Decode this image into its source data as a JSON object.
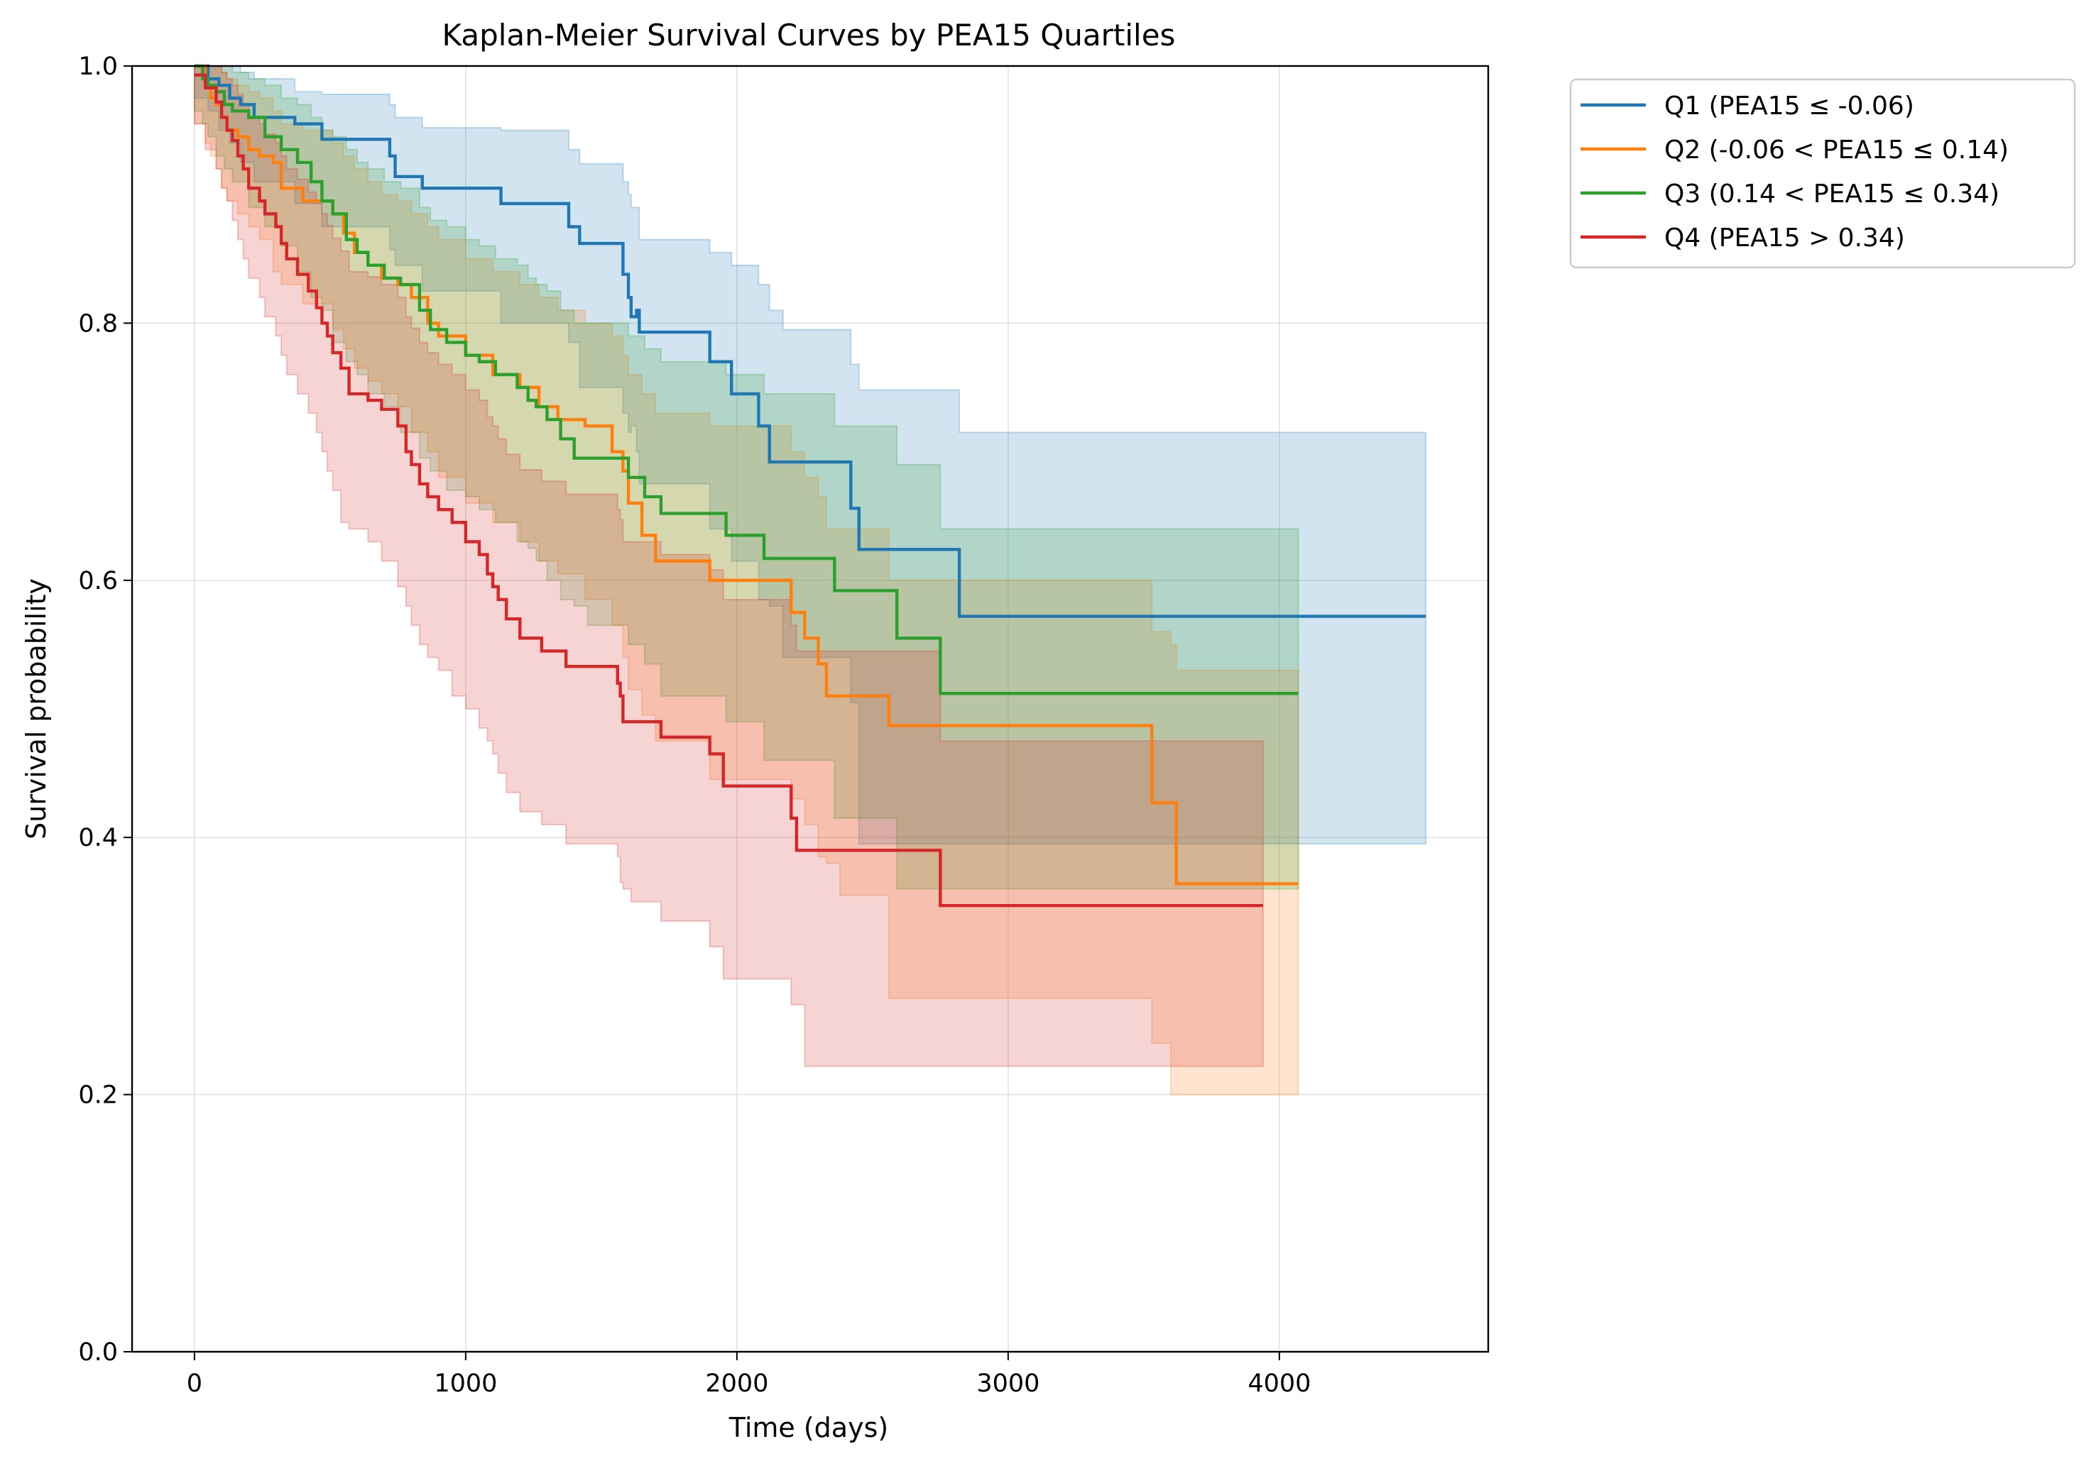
{
  "chart_data": {
    "type": "line",
    "title": "Kaplan-Meier Survival Curves by PEA15 Quartiles",
    "xlabel": "Time (days)",
    "ylabel": "Survival probability",
    "xlim": [
      -230,
      4770
    ],
    "ylim": [
      0.0,
      1.0
    ],
    "xticks": [
      0,
      1000,
      2000,
      3000,
      4000
    ],
    "xtick_labels": [
      "0",
      "1000",
      "2000",
      "3000",
      "4000"
    ],
    "yticks": [
      0.0,
      0.2,
      0.4,
      0.6,
      0.8,
      1.0
    ],
    "ytick_labels": [
      "0.0",
      "0.2",
      "0.4",
      "0.6",
      "0.8",
      "1.0"
    ],
    "grid": true,
    "legend_position": "outside upper-right",
    "series": [
      {
        "name": "Q1 (PEA15 ≤ -0.06)",
        "color": "#1f77b4",
        "x": [
          0,
          50,
          90,
          130,
          170,
          220,
          370,
          470,
          720,
          740,
          840,
          1130,
          1380,
          1420,
          1580,
          1600,
          1610,
          1630,
          1640,
          1900,
          1980,
          2080,
          2120,
          2170,
          2420,
          2450,
          2820,
          4540
        ],
        "y": [
          1.0,
          0.99,
          0.985,
          0.975,
          0.97,
          0.96,
          0.955,
          0.943,
          0.93,
          0.914,
          0.905,
          0.893,
          0.875,
          0.862,
          0.838,
          0.82,
          0.805,
          0.81,
          0.793,
          0.77,
          0.745,
          0.72,
          0.692,
          0.692,
          0.656,
          0.624,
          0.572,
          0.572
        ],
        "ci_upper": [
          1.0,
          1.0,
          1.0,
          1.0,
          0.995,
          0.99,
          0.98,
          0.978,
          0.97,
          0.96,
          0.952,
          0.95,
          0.935,
          0.924,
          0.91,
          0.9,
          0.89,
          0.89,
          0.865,
          0.855,
          0.845,
          0.83,
          0.81,
          0.795,
          0.768,
          0.748,
          0.715,
          0.715
        ],
        "ci_lower": [
          0.99,
          0.975,
          0.965,
          0.95,
          0.94,
          0.925,
          0.91,
          0.893,
          0.875,
          0.857,
          0.845,
          0.825,
          0.8,
          0.785,
          0.75,
          0.73,
          0.715,
          0.72,
          0.7,
          0.675,
          0.64,
          0.615,
          0.585,
          0.58,
          0.54,
          0.505,
          0.395,
          0.395
        ]
      },
      {
        "name": "Q2 (-0.06 < PEA15 ≤ 0.14)",
        "color": "#ff7f0e",
        "x": [
          0,
          40,
          60,
          80,
          100,
          120,
          160,
          200,
          240,
          290,
          320,
          400,
          510,
          550,
          590,
          640,
          690,
          750,
          800,
          860,
          900,
          1000,
          1100,
          1200,
          1270,
          1340,
          1440,
          1540,
          1580,
          1600,
          1650,
          1700,
          1900,
          2200,
          2250,
          2300,
          2330,
          2380,
          2560,
          3530,
          3600,
          3620,
          4070
        ],
        "y": [
          1.0,
          0.985,
          0.975,
          0.97,
          0.96,
          0.95,
          0.945,
          0.935,
          0.93,
          0.925,
          0.905,
          0.895,
          0.885,
          0.87,
          0.855,
          0.845,
          0.835,
          0.83,
          0.82,
          0.8,
          0.79,
          0.775,
          0.76,
          0.75,
          0.735,
          0.725,
          0.72,
          0.7,
          0.685,
          0.66,
          0.635,
          0.615,
          0.6,
          0.575,
          0.555,
          0.535,
          0.51,
          0.51,
          0.487,
          0.427,
          0.427,
          0.364,
          0.364
        ],
        "ci_upper": [
          1.0,
          1.0,
          1.0,
          1.0,
          0.995,
          0.99,
          0.985,
          0.98,
          0.975,
          0.965,
          0.955,
          0.95,
          0.94,
          0.93,
          0.92,
          0.91,
          0.9,
          0.895,
          0.885,
          0.875,
          0.865,
          0.85,
          0.84,
          0.83,
          0.82,
          0.81,
          0.8,
          0.79,
          0.775,
          0.76,
          0.745,
          0.73,
          0.72,
          0.7,
          0.68,
          0.665,
          0.64,
          0.64,
          0.6,
          0.56,
          0.55,
          0.53,
          0.53
        ],
        "ci_lower": [
          0.985,
          0.955,
          0.94,
          0.93,
          0.92,
          0.905,
          0.895,
          0.885,
          0.875,
          0.865,
          0.84,
          0.83,
          0.815,
          0.795,
          0.78,
          0.765,
          0.755,
          0.745,
          0.735,
          0.715,
          0.7,
          0.68,
          0.66,
          0.645,
          0.63,
          0.615,
          0.605,
          0.585,
          0.565,
          0.54,
          0.515,
          0.495,
          0.475,
          0.445,
          0.43,
          0.41,
          0.385,
          0.38,
          0.355,
          0.275,
          0.24,
          0.2,
          0.2
        ]
      },
      {
        "name": "Q3 (0.14 < PEA15 ≤ 0.34)",
        "color": "#2ca02c",
        "x": [
          0,
          30,
          50,
          80,
          110,
          140,
          200,
          260,
          320,
          380,
          430,
          470,
          510,
          560,
          600,
          640,
          700,
          760,
          830,
          870,
          930,
          1000,
          1050,
          1110,
          1190,
          1230,
          1260,
          1300,
          1350,
          1400,
          1450,
          1600,
          1660,
          1720,
          1960,
          2100,
          2360,
          2590,
          2750,
          4070
        ],
        "y": [
          1.0,
          0.99,
          0.985,
          0.98,
          0.97,
          0.965,
          0.96,
          0.945,
          0.935,
          0.925,
          0.91,
          0.895,
          0.885,
          0.865,
          0.855,
          0.845,
          0.835,
          0.83,
          0.81,
          0.795,
          0.785,
          0.775,
          0.77,
          0.76,
          0.75,
          0.74,
          0.735,
          0.725,
          0.71,
          0.695,
          0.695,
          0.68,
          0.665,
          0.652,
          0.635,
          0.617,
          0.592,
          0.555,
          0.512,
          0.512
        ],
        "ci_upper": [
          1.0,
          1.0,
          1.0,
          1.0,
          1.0,
          0.995,
          0.99,
          0.985,
          0.975,
          0.97,
          0.96,
          0.95,
          0.945,
          0.935,
          0.925,
          0.92,
          0.91,
          0.905,
          0.89,
          0.88,
          0.875,
          0.865,
          0.86,
          0.85,
          0.845,
          0.835,
          0.83,
          0.825,
          0.81,
          0.8,
          0.8,
          0.79,
          0.78,
          0.77,
          0.76,
          0.745,
          0.72,
          0.69,
          0.64,
          0.64
        ],
        "ci_lower": [
          0.99,
          0.965,
          0.955,
          0.945,
          0.93,
          0.92,
          0.91,
          0.89,
          0.875,
          0.86,
          0.84,
          0.82,
          0.81,
          0.785,
          0.77,
          0.76,
          0.745,
          0.735,
          0.715,
          0.695,
          0.685,
          0.67,
          0.665,
          0.655,
          0.645,
          0.63,
          0.625,
          0.615,
          0.6,
          0.585,
          0.58,
          0.565,
          0.55,
          0.535,
          0.51,
          0.49,
          0.46,
          0.415,
          0.36,
          0.36
        ]
      },
      {
        "name": "Q4 (PEA15 > 0.34)",
        "color": "#d62728",
        "x": [
          0,
          40,
          80,
          100,
          120,
          140,
          160,
          180,
          200,
          240,
          260,
          300,
          320,
          340,
          380,
          420,
          450,
          470,
          490,
          510,
          540,
          570,
          640,
          690,
          750,
          780,
          800,
          830,
          860,
          900,
          950,
          1000,
          1050,
          1080,
          1100,
          1120,
          1150,
          1200,
          1280,
          1370,
          1560,
          1570,
          1580,
          1610,
          1720,
          1900,
          1950,
          2200,
          2220,
          2250,
          2750,
          3940
        ],
        "y": [
          0.993,
          0.983,
          0.972,
          0.96,
          0.95,
          0.942,
          0.93,
          0.92,
          0.905,
          0.895,
          0.885,
          0.875,
          0.862,
          0.85,
          0.838,
          0.825,
          0.812,
          0.8,
          0.79,
          0.777,
          0.765,
          0.745,
          0.74,
          0.733,
          0.72,
          0.7,
          0.69,
          0.675,
          0.665,
          0.655,
          0.645,
          0.63,
          0.62,
          0.605,
          0.595,
          0.585,
          0.57,
          0.555,
          0.545,
          0.533,
          0.52,
          0.51,
          0.49,
          0.49,
          0.478,
          0.465,
          0.44,
          0.415,
          0.39,
          0.39,
          0.347,
          0.347
        ],
        "ci_upper": [
          1.0,
          1.0,
          1.0,
          0.995,
          0.99,
          0.985,
          0.978,
          0.97,
          0.96,
          0.955,
          0.947,
          0.94,
          0.93,
          0.92,
          0.912,
          0.902,
          0.893,
          0.885,
          0.876,
          0.866,
          0.856,
          0.84,
          0.836,
          0.83,
          0.82,
          0.805,
          0.796,
          0.785,
          0.777,
          0.768,
          0.76,
          0.748,
          0.74,
          0.727,
          0.72,
          0.71,
          0.698,
          0.686,
          0.677,
          0.667,
          0.655,
          0.647,
          0.63,
          0.63,
          0.62,
          0.608,
          0.585,
          0.565,
          0.545,
          0.545,
          0.475,
          0.475
        ],
        "ci_lower": [
          0.97,
          0.955,
          0.935,
          0.92,
          0.905,
          0.895,
          0.88,
          0.865,
          0.85,
          0.835,
          0.82,
          0.805,
          0.79,
          0.775,
          0.76,
          0.745,
          0.73,
          0.715,
          0.7,
          0.685,
          0.67,
          0.645,
          0.64,
          0.63,
          0.615,
          0.595,
          0.58,
          0.565,
          0.55,
          0.54,
          0.53,
          0.51,
          0.5,
          0.485,
          0.475,
          0.465,
          0.45,
          0.435,
          0.42,
          0.41,
          0.395,
          0.385,
          0.365,
          0.36,
          0.35,
          0.335,
          0.315,
          0.29,
          0.27,
          0.27,
          0.222,
          0.222
        ]
      }
    ]
  }
}
